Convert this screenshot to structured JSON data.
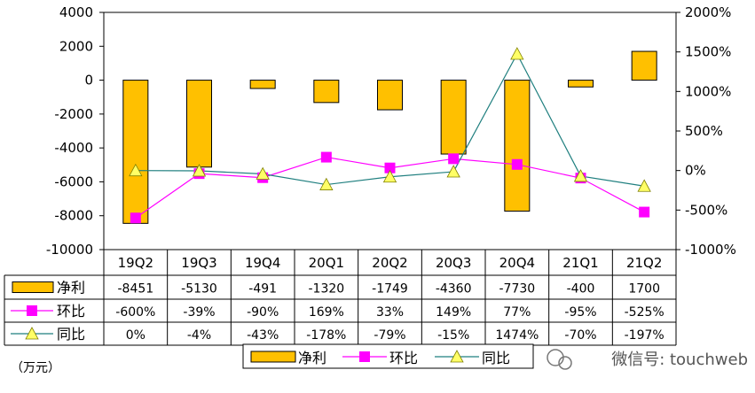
{
  "chart_data": {
    "type": "bar",
    "categories": [
      "19Q2",
      "19Q3",
      "19Q4",
      "20Q1",
      "20Q2",
      "20Q3",
      "20Q4",
      "21Q1",
      "21Q2"
    ],
    "series": [
      {
        "name": "净利",
        "type": "bar",
        "axis": "left",
        "color": "#FFC000",
        "values": [
          -8451,
          -5130,
          -491,
          -1320,
          -1749,
          -4360,
          -7730,
          -400,
          1700
        ]
      },
      {
        "name": "环比",
        "type": "line",
        "axis": "right",
        "color": "#FF00FF",
        "marker": "square",
        "values": [
          -600,
          -39,
          -90,
          169,
          33,
          149,
          77,
          -95,
          -525
        ]
      },
      {
        "name": "同比",
        "type": "line",
        "axis": "right",
        "color": "#1F7F7F",
        "marker": "triangle",
        "marker_color": "#FFFF66",
        "values": [
          0,
          -4,
          -43,
          -178,
          -79,
          -15,
          1474,
          -70,
          -197
        ]
      }
    ],
    "table": {
      "rows": [
        {
          "label": "净利",
          "cells": [
            "-8451",
            "-5130",
            "-491",
            "-1320",
            "-1749",
            "-4360",
            "-7730",
            "-400",
            "1700"
          ]
        },
        {
          "label": "环比",
          "cells": [
            "-600%",
            "-39%",
            "-90%",
            "169%",
            "33%",
            "149%",
            "77%",
            "-95%",
            "-525%"
          ]
        },
        {
          "label": "同比",
          "cells": [
            "0%",
            "-4%",
            "-43%",
            "-178%",
            "-79%",
            "-15%",
            "1474%",
            "-70%",
            "-197%"
          ]
        }
      ]
    },
    "y_left": {
      "min": -10000,
      "max": 4000,
      "ticks": [
        "4000",
        "2000",
        "0",
        "-2000",
        "-4000",
        "-6000",
        "-8000",
        "-10000"
      ]
    },
    "y_right": {
      "min": -1000,
      "max": 2000,
      "ticks": [
        "2000%",
        "1500%",
        "1000%",
        "500%",
        "0%",
        "-500%",
        "-1000%"
      ]
    },
    "legend": [
      "净利",
      "环比",
      "同比"
    ],
    "legend_position": "bottom",
    "grid": false,
    "unit_label": "（万元）"
  },
  "watermark": "微信号: touchweb"
}
